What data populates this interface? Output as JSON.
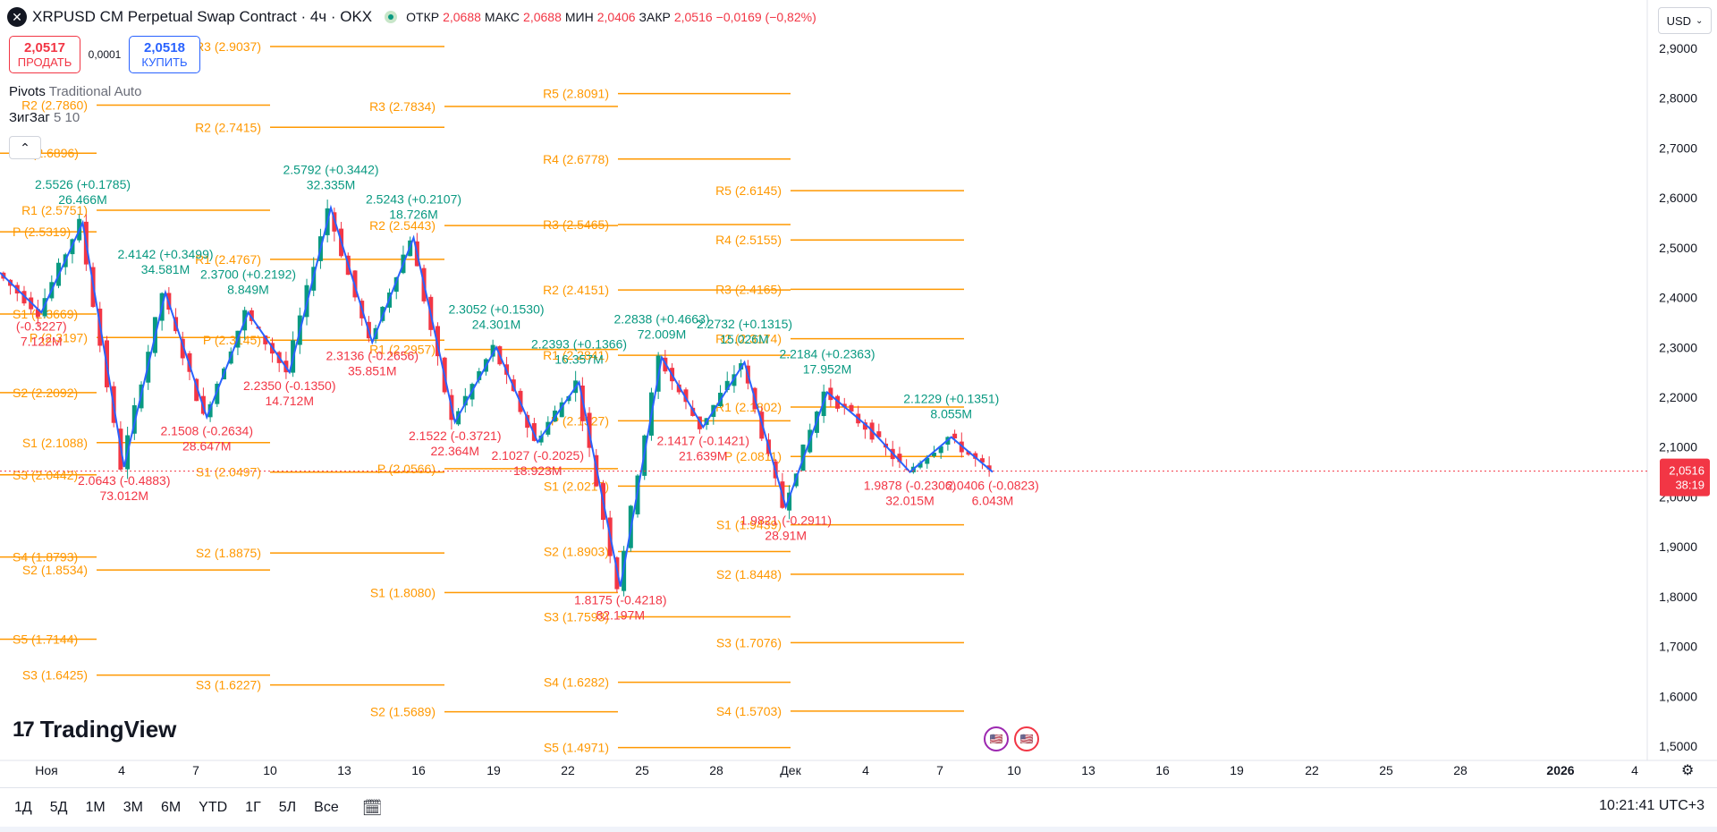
{
  "header": {
    "symbol": "XRPUSD CM Perpetual Swap Contract · 4ч · OKX",
    "open_label": "ОТКР",
    "open": "2,0688",
    "high_label": "МАКС",
    "high": "2,0688",
    "low_label": "МИН",
    "low": "2,0406",
    "close_label": "ЗАКР",
    "close": "2,0516",
    "change": "−0,0169 (−0,82%)"
  },
  "trade": {
    "sell_price": "2,0517",
    "sell_label": "ПРОДАТЬ",
    "spread": "0,0001",
    "buy_price": "2,0518",
    "buy_label": "КУПИТЬ"
  },
  "indicators": {
    "pivots_name": "Pivots",
    "pivots_params": "Traditional Auto",
    "zigzag_name": "ЗигЗаг",
    "zigzag_params": "5 10"
  },
  "currency_button": "USD",
  "logo_text": "TradingView",
  "bottom": {
    "ranges": [
      "1Д",
      "5Д",
      "1М",
      "3М",
      "6М",
      "YTD",
      "1Г",
      "5Л",
      "Все"
    ],
    "clock": "10:21:41 UTC+3"
  },
  "chart_data": {
    "type": "candlestick",
    "symbol": "XRPUSD",
    "timeframe": "4ч",
    "ylim": [
      1.48,
      2.95
    ],
    "price_axis": [
      "2,9000",
      "2,8000",
      "2,7000",
      "2,6000",
      "2,5000",
      "2,4000",
      "2,3000",
      "2,2000",
      "2,1000",
      "2,0000",
      "1,9000",
      "1,8000",
      "1,7000",
      "1,6000",
      "1,5000"
    ],
    "price_values": [
      2.9,
      2.8,
      2.7,
      2.6,
      2.5,
      2.4,
      2.3,
      2.2,
      2.1,
      2.0,
      1.9,
      1.8,
      1.7,
      1.6,
      1.5
    ],
    "time_axis": [
      "Ноя",
      "4",
      "7",
      "10",
      "13",
      "16",
      "19",
      "22",
      "25",
      "28",
      "Дек",
      "4",
      "7",
      "10",
      "13",
      "16",
      "19",
      "22",
      "25",
      "28",
      "2026",
      "4"
    ],
    "last_price": "2,0516",
    "last_price_value": 2.0516,
    "countdown": "38:19",
    "pivot_color": "#ff9800",
    "zigzag_color": "#2962ff",
    "up_color": "#089981",
    "down_color": "#f23645",
    "pivot_periods": [
      {
        "levels": [
          {
            "label": "R1 (2.6896)",
            "value": 2.6896
          },
          {
            "label": "P (2.5319)",
            "value": 2.5319
          },
          {
            "label": "S1 (2.3669)",
            "value": 2.3669
          },
          {
            "label": "S2 (2.2092)",
            "value": 2.2092
          },
          {
            "label": "S3 (2.0442)",
            "value": 2.0442
          },
          {
            "label": "S4 (1.8793)",
            "value": 1.8793
          },
          {
            "label": "S5 (1.7144)",
            "value": 1.7144
          }
        ]
      },
      {
        "levels": [
          {
            "label": "R2 (2.7860)",
            "value": 2.786
          },
          {
            "label": "R1 (2.5751)",
            "value": 2.5751
          },
          {
            "label": "P (2.3197)",
            "value": 2.3197
          },
          {
            "label": "S1 (2.1088)",
            "value": 2.1088
          },
          {
            "label": "S2 (1.8534)",
            "value": 1.8534
          },
          {
            "label": "S3 (1.6425)",
            "value": 1.6425
          }
        ]
      },
      {
        "levels": [
          {
            "label": "R3 (2.9037)",
            "value": 2.9037
          },
          {
            "label": "R2 (2.7415)",
            "value": 2.7415
          },
          {
            "label": "R1 (2.4767)",
            "value": 2.4767
          },
          {
            "label": "P (2.3145)",
            "value": 2.3145
          },
          {
            "label": "S1 (2.0497)",
            "value": 2.0497
          },
          {
            "label": "S2 (1.8875)",
            "value": 1.8875
          },
          {
            "label": "S3 (1.6227)",
            "value": 1.6227
          }
        ]
      },
      {
        "levels": [
          {
            "label": "R3 (2.7834)",
            "value": 2.7834
          },
          {
            "label": "R2 (2.5443)",
            "value": 2.5443
          },
          {
            "label": "R1 (2.2957)",
            "value": 2.2957
          },
          {
            "label": "P (2.0566)",
            "value": 2.0566
          },
          {
            "label": "S1 (1.8080)",
            "value": 1.808
          },
          {
            "label": "S2 (1.5689)",
            "value": 1.5689
          }
        ]
      },
      {
        "levels": [
          {
            "label": "R5 (2.8091)",
            "value": 2.8091
          },
          {
            "label": "R4 (2.6778)",
            "value": 2.6778
          },
          {
            "label": "R3 (2.5465)",
            "value": 2.5465
          },
          {
            "label": "R2 (2.4151)",
            "value": 2.4151
          },
          {
            "label": "R1 (2.2841)",
            "value": 2.2841
          },
          {
            "label": "P (2.1527)",
            "value": 2.1527
          },
          {
            "label": "S1 (2.0217)",
            "value": 2.0217
          },
          {
            "label": "S2 (1.8903)",
            "value": 1.8903
          },
          {
            "label": "S3 (1.7593)",
            "value": 1.7593
          },
          {
            "label": "S4 (1.6282)",
            "value": 1.6282
          },
          {
            "label": "S5 (1.4971)",
            "value": 1.4971
          }
        ]
      },
      {
        "levels": [
          {
            "label": "R5 (2.6145)",
            "value": 2.6145
          },
          {
            "label": "R4 (2.5155)",
            "value": 2.5155
          },
          {
            "label": "R3 (2.4165)",
            "value": 2.4165
          },
          {
            "label": "R2 (2.3174)",
            "value": 2.3174
          },
          {
            "label": "R1 (2.1802)",
            "value": 2.1802
          },
          {
            "label": "P (2.0811)",
            "value": 2.0811
          },
          {
            "label": "S1 (1.9439)",
            "value": 1.9439
          },
          {
            "label": "S2 (1.8448)",
            "value": 1.8448
          },
          {
            "label": "S3 (1.7076)",
            "value": 1.7076
          },
          {
            "label": "S4 (1.5703)",
            "value": 1.5703
          }
        ]
      }
    ],
    "zigzag": [
      2.45,
      2.37,
      2.55,
      2.06,
      2.41,
      2.16,
      2.37,
      2.25,
      2.58,
      2.31,
      2.52,
      2.15,
      2.3,
      2.11,
      2.23,
      1.82,
      2.28,
      2.14,
      2.27,
      1.98,
      2.21,
      2.14,
      2.05,
      2.12,
      2.05
    ],
    "zigzag_labels": [
      {
        "text": "2.5526 (+0.1785)",
        "vol": "26.466M",
        "dir": "up",
        "zz": 2
      },
      {
        "text": "2.4142 (+0.3499)",
        "vol": "34.581M",
        "dir": "up",
        "zz": 4
      },
      {
        "text": "2.3700 (+0.2192)",
        "vol": "8.849M",
        "dir": "up",
        "zz": 6
      },
      {
        "text": "2.5792 (+0.3442)",
        "vol": "32.335M",
        "dir": "up",
        "zz": 8
      },
      {
        "text": "2.5243 (+0.2107)",
        "vol": "18.726M",
        "dir": "up",
        "zz": 10
      },
      {
        "text": "2.3052 (+0.1530)",
        "vol": "24.301M",
        "dir": "up",
        "zz": 12
      },
      {
        "text": "2.2393 (+0.1366)",
        "vol": "16.357M",
        "dir": "up",
        "zz": 14
      },
      {
        "text": "2.2838 (+0.4663)",
        "vol": "72.009M",
        "dir": "up",
        "zz": 16
      },
      {
        "text": "2.2732 (+0.1315)",
        "vol": "15.026M",
        "dir": "up",
        "zz": 18
      },
      {
        "text": "2.2184 (+0.2363)",
        "vol": "17.952M",
        "dir": "up",
        "zz": 20
      },
      {
        "text": "2.1229 (+0.1351)",
        "vol": "8.055M",
        "dir": "up",
        "zz": 23
      },
      {
        "text": "(-0.3227)",
        "vol": "7.122M",
        "dir": "down",
        "zz": 1
      },
      {
        "text": "2.0643 (-0.4883)",
        "vol": "73.012M",
        "dir": "down",
        "zz": 3
      },
      {
        "text": "2.1508 (-0.2634)",
        "vol": "28.647M",
        "dir": "down",
        "zz": 5
      },
      {
        "text": "2.2350 (-0.1350)",
        "vol": "14.712M",
        "dir": "down",
        "zz": 7
      },
      {
        "text": "2.3136 (-0.2656)",
        "vol": "35.851M",
        "dir": "down",
        "zz": 9
      },
      {
        "text": "2.1522 (-0.3721)",
        "vol": "22.364M",
        "dir": "down",
        "zz": 11
      },
      {
        "text": "2.1027 (-0.2025)",
        "vol": "18.923M",
        "dir": "down",
        "zz": 13
      },
      {
        "text": "1.8175 (-0.4218)",
        "vol": "82.197M",
        "dir": "down",
        "zz": 15
      },
      {
        "text": "2.1417 (-0.1421)",
        "vol": "21.639M",
        "dir": "down",
        "zz": 17
      },
      {
        "text": "1.9821 (-0.2911)",
        "vol": "28.91M",
        "dir": "down",
        "zz": 19
      },
      {
        "text": "1.9878 (-0.2306)",
        "vol": "32.015M",
        "dir": "down",
        "zz": 22
      },
      {
        "text": "2.0406 (-0.0823)",
        "vol": "6.043M",
        "dir": "down",
        "zz": 24
      }
    ]
  }
}
